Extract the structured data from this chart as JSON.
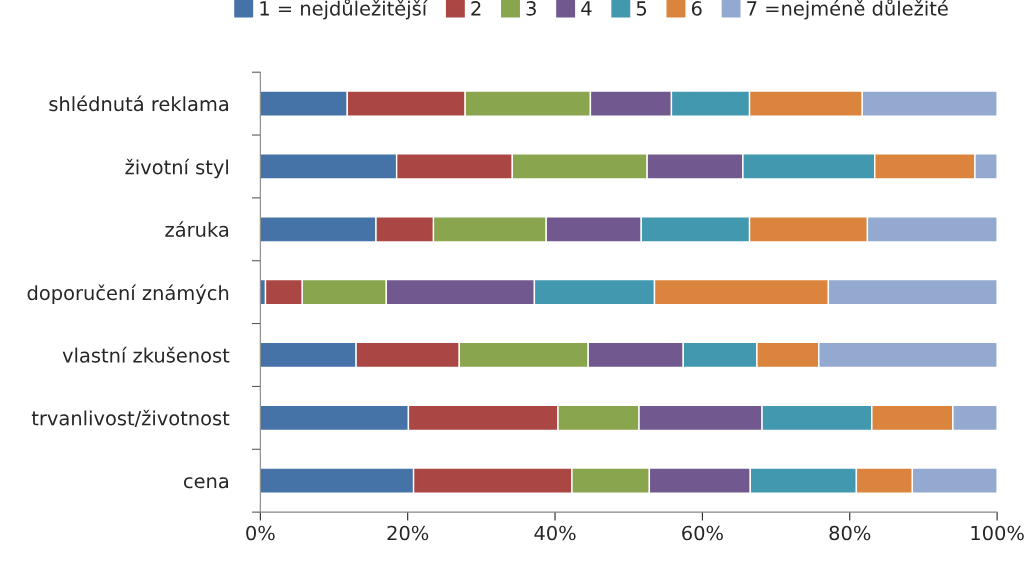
{
  "chart_data": {
    "type": "bar",
    "orientation": "horizontal",
    "stacked": true,
    "categories": [
      "shlédnutá reklama",
      "životní styl",
      "záruka",
      "doporučení známých",
      "vlastní zkušenost",
      "trvanlivost/životnost",
      "cena"
    ],
    "series": [
      {
        "name": "1 = nejdůležitější",
        "color": "#4572a7",
        "values": [
          11.8,
          18.5,
          15.7,
          0.7,
          13.0,
          20.1,
          20.8
        ]
      },
      {
        "name": "2",
        "color": "#aa4643",
        "values": [
          16.0,
          15.7,
          7.8,
          5.0,
          14.0,
          20.3,
          21.5
        ]
      },
      {
        "name": "3",
        "color": "#89a54e",
        "values": [
          17.0,
          18.3,
          15.3,
          11.4,
          17.5,
          11.0,
          10.5
        ]
      },
      {
        "name": "4",
        "color": "#71588f",
        "values": [
          11.0,
          13.0,
          12.9,
          20.1,
          12.9,
          16.7,
          13.7
        ]
      },
      {
        "name": "5",
        "color": "#4198af",
        "values": [
          10.6,
          17.9,
          14.7,
          16.3,
          10.0,
          14.9,
          14.4
        ]
      },
      {
        "name": "6",
        "color": "#db843d",
        "values": [
          15.3,
          13.6,
          16.0,
          23.6,
          8.4,
          11.0,
          7.6
        ]
      },
      {
        "name": "7 =nejméně důležité",
        "color": "#93a9cf",
        "values": [
          18.3,
          3.0,
          17.6,
          22.9,
          24.2,
          6.0,
          11.5
        ]
      }
    ],
    "xlim": [
      0,
      100
    ],
    "xticks": [
      {
        "value": 0,
        "label": "0%"
      },
      {
        "value": 20,
        "label": "20%"
      },
      {
        "value": 40,
        "label": "40%"
      },
      {
        "value": 60,
        "label": "60%"
      },
      {
        "value": 80,
        "label": "80%"
      },
      {
        "value": 100,
        "label": "100%"
      }
    ],
    "grid": false,
    "legend": "top"
  }
}
